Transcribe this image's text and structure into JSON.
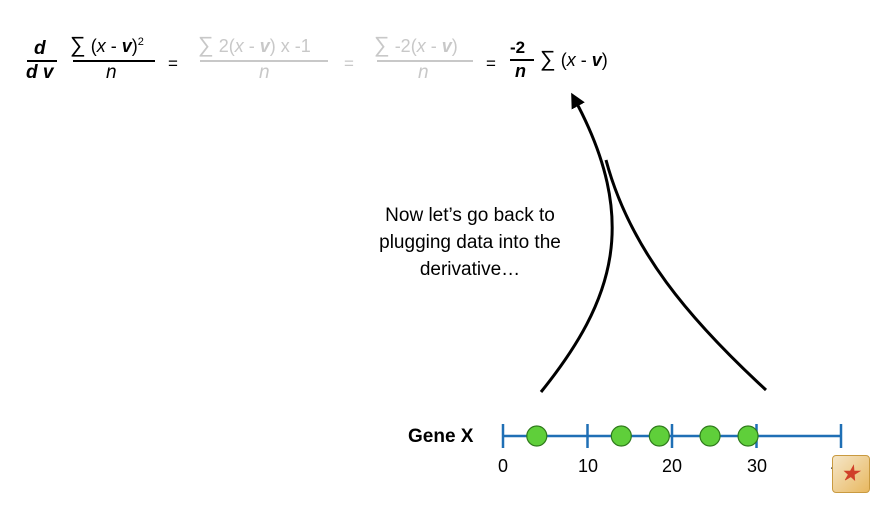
{
  "equation": {
    "lhs_num": "d",
    "lhs_den": "d v",
    "term1_num": {
      "sum": "∑",
      "open": " (",
      "x": "x",
      "minus": " - ",
      "v": "v",
      "close": ")",
      "sup": "2"
    },
    "term1_den": "n",
    "eq1": "=",
    "term2_num": {
      "sum": "∑",
      "pre": " 2(",
      "x": "x",
      "minus": " - ",
      "v": "v",
      "close": ") x -1"
    },
    "term2_den": "n",
    "eq2": "=",
    "term3_num": {
      "sum": "∑",
      "pre": " -2(",
      "x": "x",
      "minus": " - ",
      "v": "v",
      "close": ")"
    },
    "term3_den": "n",
    "eq3": "=",
    "term4_num": "-2",
    "term4_den": "n",
    "term4_tail": {
      "sum": "∑",
      "open": " (",
      "x": "x",
      "minus": " - ",
      "v": "v",
      "close": ")"
    }
  },
  "caption": {
    "line1": "Now let’s go back to",
    "line2": "plugging data into the",
    "line3": "derivative…"
  },
  "number_line": {
    "label": "Gene X",
    "ticks": [
      "0",
      "10",
      "20",
      "30",
      "40"
    ],
    "points": [
      4,
      14,
      18.5,
      24.5,
      29
    ],
    "axis_color": "#1f6fb5",
    "point_color": "#5fcf3a"
  },
  "colors": {
    "faint_text": "#c8c8c8",
    "arrow": "#000000"
  },
  "badge_icon": "statquest-logo-icon"
}
